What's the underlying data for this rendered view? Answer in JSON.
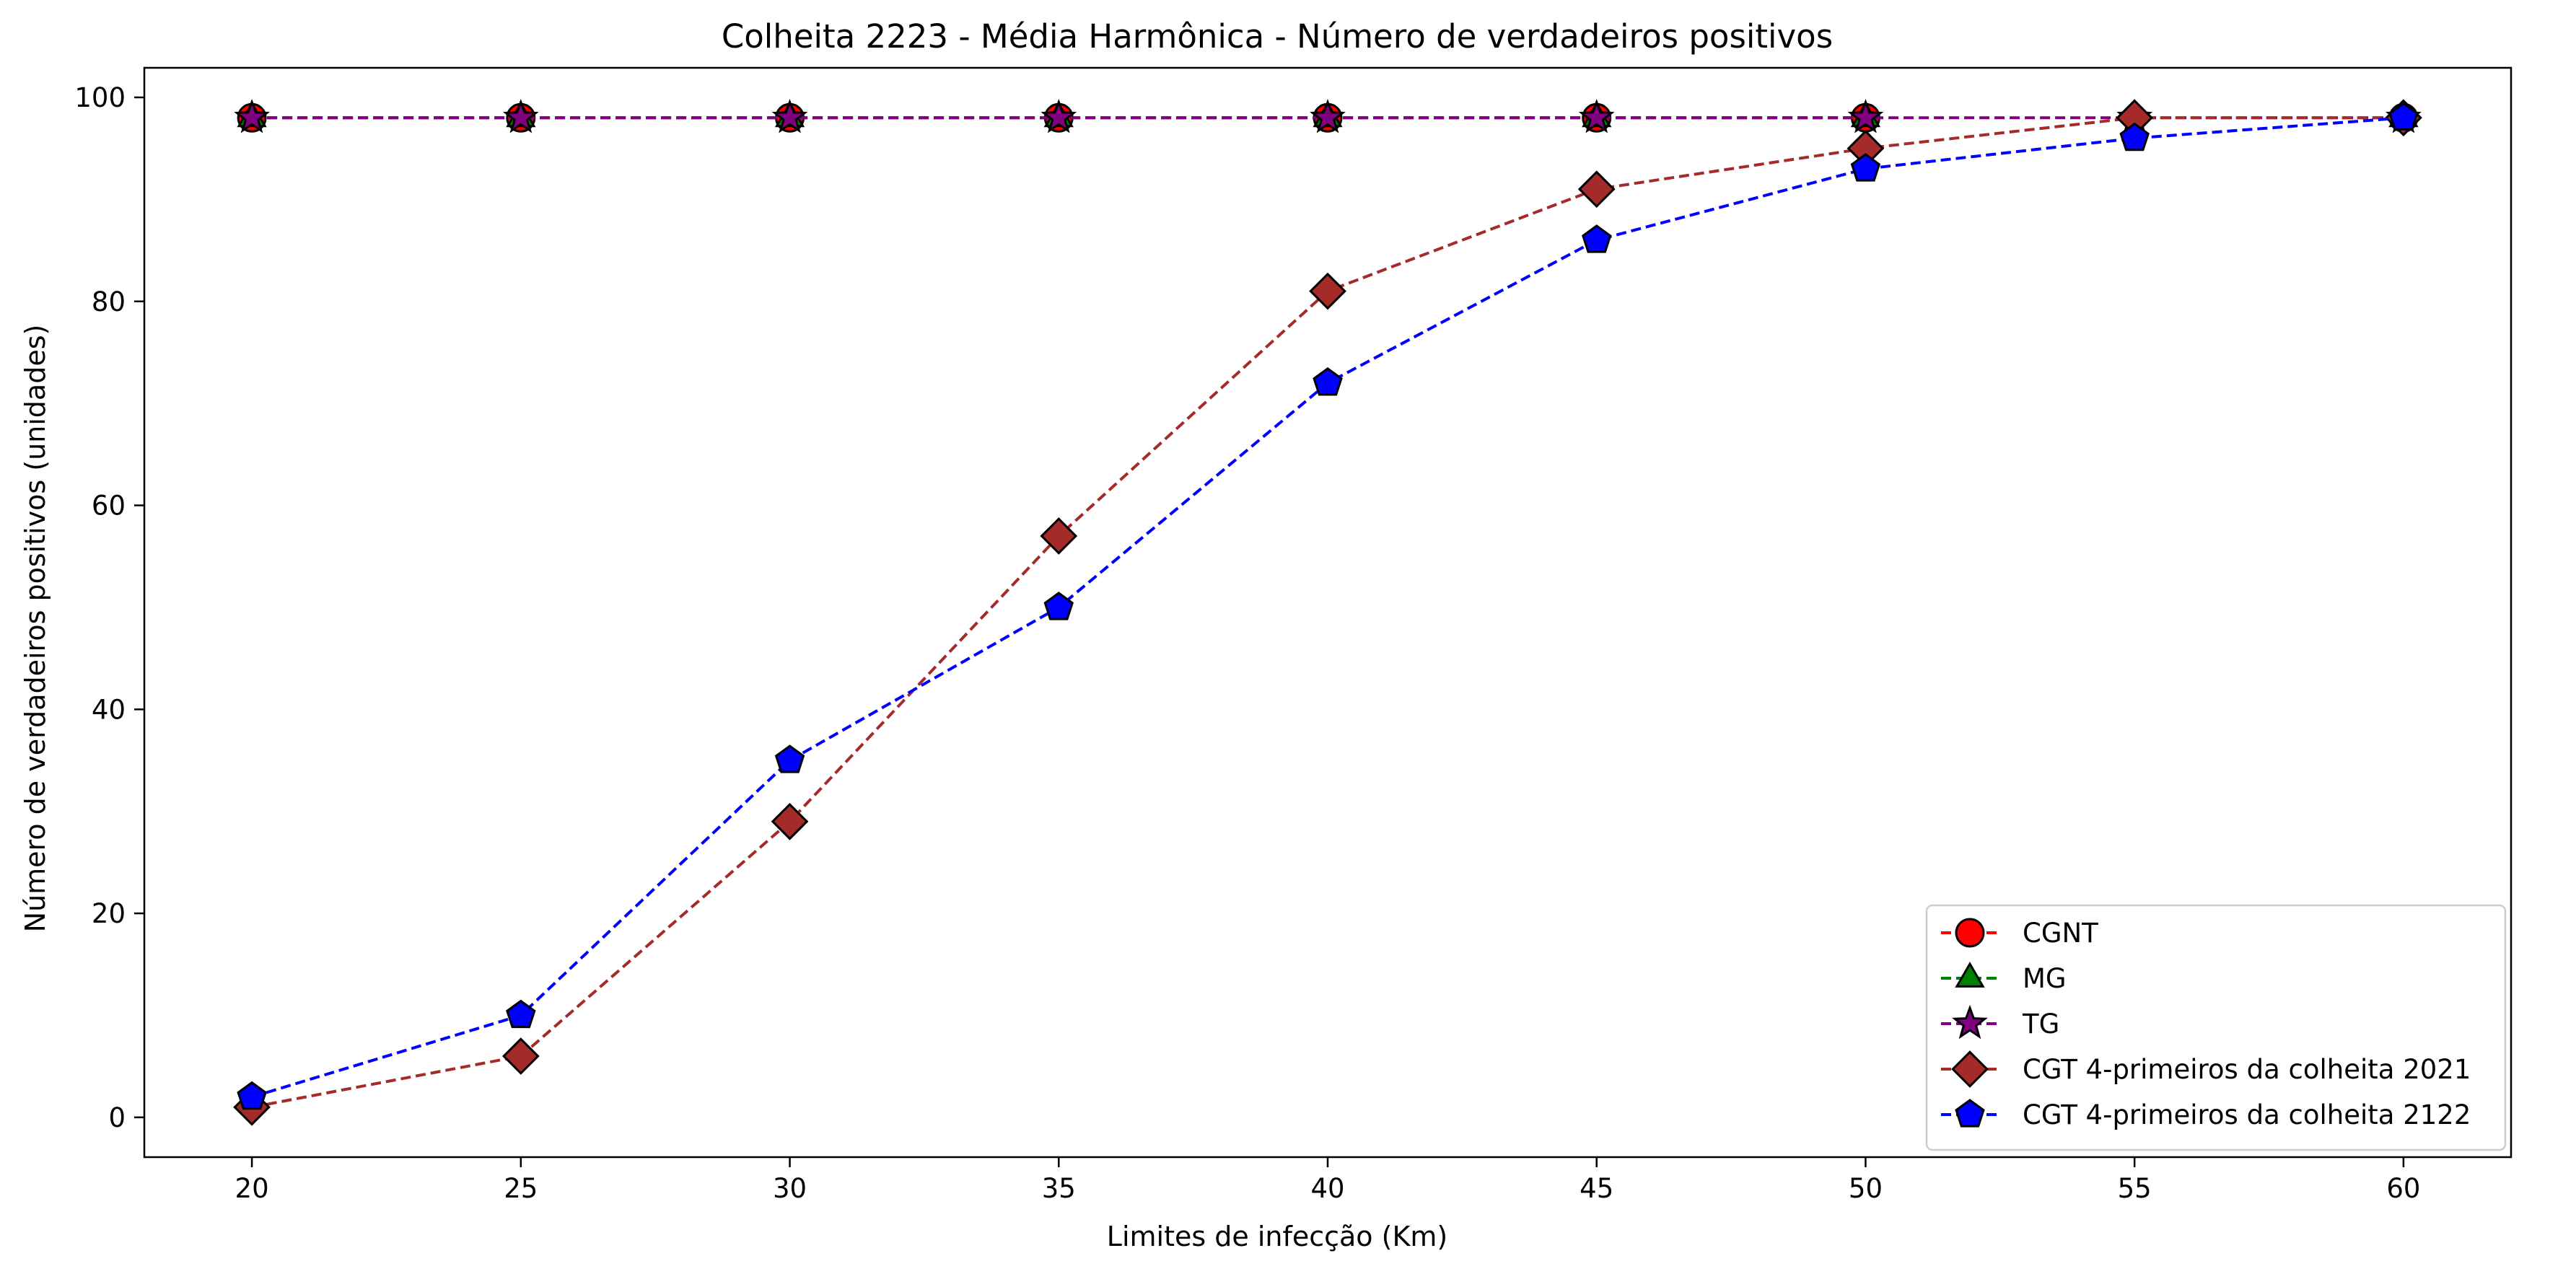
{
  "chart_data": {
    "type": "line",
    "title": "Colheita 2223 - Média Harmônica - Número de verdadeiros positivos",
    "xlabel": "Limites de infecção (Km)",
    "ylabel": "Número de verdadeiros positivos (unidades)",
    "x": [
      20,
      25,
      30,
      35,
      40,
      45,
      50,
      55,
      60
    ],
    "xticks": [
      20,
      25,
      30,
      35,
      40,
      45,
      50,
      55,
      60
    ],
    "yticks": [
      0,
      20,
      40,
      60,
      80,
      100
    ],
    "xlim": [
      18,
      62
    ],
    "ylim": [
      -3.9,
      102.9
    ],
    "grid": false,
    "legend_position": "lower-right",
    "series": [
      {
        "name": "CGNT",
        "values": [
          98,
          98,
          98,
          98,
          98,
          98,
          98,
          null,
          98
        ],
        "color": "#ff0000",
        "marker": "circle",
        "linestyle": "dashed"
      },
      {
        "name": "MG",
        "values": [
          98,
          98,
          98,
          98,
          98,
          98,
          98,
          null,
          98
        ],
        "color": "#008000",
        "marker": "triangle",
        "linestyle": "dashed"
      },
      {
        "name": "TG",
        "values": [
          98,
          98,
          98,
          98,
          98,
          98,
          98,
          98,
          98
        ],
        "color": "#800080",
        "marker": "star",
        "linestyle": "dashed"
      },
      {
        "name": "CGT 4-primeiros da colheita 2021",
        "values": [
          1,
          6,
          29,
          57,
          81,
          91,
          95,
          98,
          98
        ],
        "color": "#a52a2a",
        "marker": "diamond",
        "linestyle": "dashed"
      },
      {
        "name": "CGT 4-primeiros da colheita 2122",
        "values": [
          2,
          10,
          35,
          50,
          72,
          86,
          93,
          96,
          98
        ],
        "color": "#0000ff",
        "marker": "pentagon",
        "linestyle": "dashed"
      }
    ]
  }
}
